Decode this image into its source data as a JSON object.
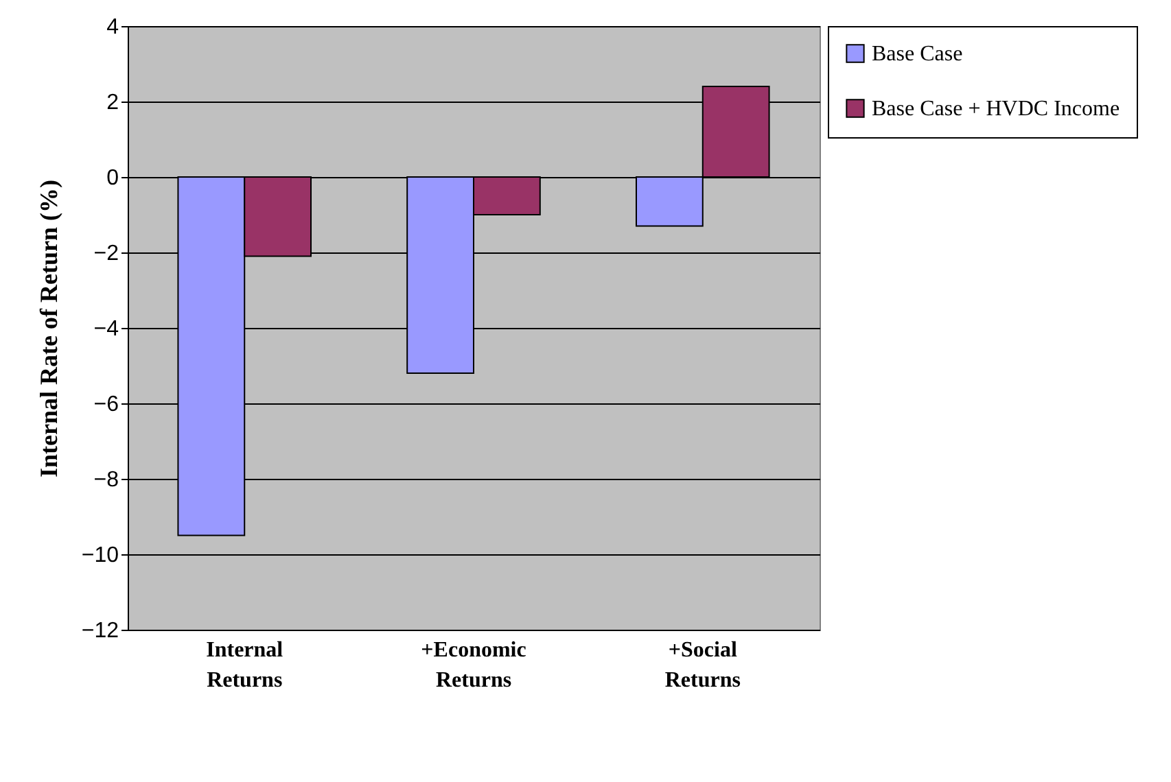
{
  "chart_data": {
    "type": "bar",
    "ylabel": "Internal Rate of Return (%)",
    "categories": [
      "Internal Returns",
      "+Economic Returns",
      "+Social Returns"
    ],
    "series": [
      {
        "name": "Base Case",
        "color": "#9999ff",
        "values": [
          -9.5,
          -5.2,
          -1.3
        ]
      },
      {
        "name": "Base Case + HVDC Income",
        "color": "#993366",
        "values": [
          -2.1,
          -1.0,
          2.4
        ]
      }
    ],
    "ylim": [
      -12,
      4
    ],
    "yticks": [
      -12,
      -10,
      -8,
      -6,
      -4,
      -2,
      0,
      2,
      4
    ],
    "grid": "y",
    "legend": "right"
  }
}
